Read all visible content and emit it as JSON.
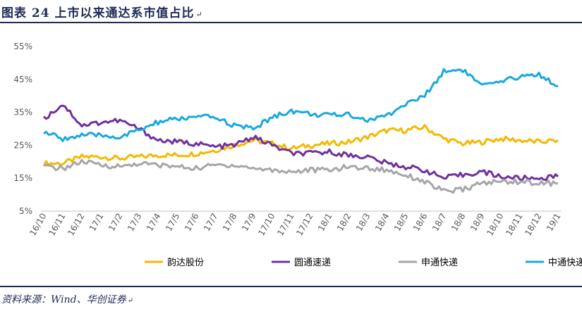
{
  "figure": {
    "title": "图表 24   上市以来通达系市值占比",
    "title_mark": "↵",
    "source": "资料来源：Wind、华创证券",
    "source_mark": "↵"
  },
  "chart_data": {
    "type": "line",
    "title": "",
    "xlabel": "",
    "ylabel": "",
    "ylim": [
      5,
      55
    ],
    "y_ticks": [
      "5%",
      "15%",
      "25%",
      "35%",
      "45%",
      "55%"
    ],
    "categories": [
      "16/10",
      "16/11",
      "16/12",
      "17/1",
      "17/2",
      "17/3",
      "17/4",
      "17/5",
      "17/6",
      "17/7",
      "17/8",
      "17/9",
      "17/10",
      "17/11",
      "17/12",
      "18/1",
      "18/2",
      "18/3",
      "18/4",
      "18/5",
      "18/6",
      "18/7",
      "18/8",
      "18/9",
      "18/10",
      "18/11",
      "18/12",
      "19/1"
    ],
    "grid": false,
    "legend_position": "bottom",
    "series": [
      {
        "name": "韵达股份",
        "color": "#F5B800",
        "values": [
          19.5,
          19.5,
          21.5,
          21.5,
          21.0,
          21.5,
          22.0,
          22.0,
          22.5,
          23.5,
          25.0,
          26.5,
          25.5,
          24.0,
          25.0,
          25.5,
          26.0,
          27.5,
          29.5,
          29.5,
          30.5,
          27.0,
          25.5,
          26.0,
          27.0,
          26.5,
          26.0,
          26.5
        ]
      },
      {
        "name": "圆通速递",
        "color": "#7030A0",
        "values": [
          33.0,
          37.5,
          31.0,
          32.0,
          32.5,
          30.0,
          26.5,
          26.0,
          25.5,
          24.5,
          25.0,
          27.5,
          25.0,
          22.5,
          22.5,
          23.0,
          22.0,
          21.5,
          19.5,
          18.5,
          17.5,
          15.0,
          16.0,
          17.0,
          15.5,
          15.0,
          15.0,
          15.5
        ]
      },
      {
        "name": "申通快递",
        "color": "#A6A6A6",
        "values": [
          18.5,
          18.0,
          20.0,
          19.0,
          18.5,
          19.5,
          19.0,
          18.5,
          18.0,
          19.0,
          19.0,
          18.0,
          17.5,
          17.0,
          17.5,
          17.5,
          18.5,
          18.0,
          17.5,
          16.0,
          14.0,
          11.0,
          11.5,
          13.5,
          14.0,
          14.0,
          13.5,
          13.5
        ]
      },
      {
        "name": "中通快递",
        "color": "#18A9E0",
        "values": [
          29.0,
          27.0,
          28.0,
          28.0,
          27.5,
          29.5,
          32.0,
          33.0,
          33.5,
          33.5,
          31.0,
          30.0,
          33.5,
          35.5,
          34.5,
          34.0,
          34.5,
          32.5,
          34.0,
          37.5,
          40.0,
          47.5,
          48.0,
          43.0,
          44.0,
          46.0,
          46.5,
          43.0
        ]
      }
    ]
  }
}
